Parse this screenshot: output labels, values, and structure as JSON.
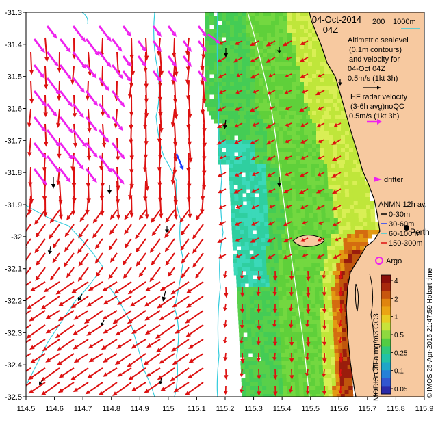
{
  "map": {
    "date_label": "04-Oct-2014",
    "time_label": "04Z",
    "x_ticks": [
      "114.5",
      "114.6",
      "114.7",
      "114.8",
      "114.9",
      "115",
      "115.1",
      "115.2",
      "115.3",
      "115.4",
      "115.5",
      "115.6",
      "115.7",
      "115.8",
      "115.9"
    ],
    "y_ticks": [
      "-31.3",
      "-31.4",
      "-31.5",
      "-31.6",
      "-31.7",
      "-31.8",
      "-31.9",
      "-32",
      "-32.1",
      "-32.2",
      "-32.3",
      "-32.4",
      "-32.5"
    ],
    "lon_range": [
      114.5,
      115.9
    ],
    "lat_range": [
      -32.5,
      -31.3
    ],
    "place_label": "Perth"
  },
  "legend": {
    "bathymetry": [
      "200",
      "1000m"
    ],
    "altimetric_lines": [
      "Altimetric sealevel",
      "(0.1m contours)",
      "and velocity for",
      "04-Oct 04Z",
      "0.5m/s (1kt 3h)"
    ],
    "hf_radar_lines": [
      "HF radar velocity",
      "(3-6h avg)noQC",
      "0.5m/s (1kt 3h)"
    ],
    "drifter_label": "drifter",
    "anmn_title": "ANMN 12h av.",
    "anmn_items": [
      "0-30m",
      "30-60m",
      "60-100m",
      "150-300m"
    ],
    "argo_label": "Argo"
  },
  "colorbar": {
    "title": "MODIS Chl-a mg/m3 OC3",
    "ticks": [
      "4",
      "2",
      "1",
      "0.5",
      "0.25",
      "0.1",
      "0.05"
    ]
  },
  "credit": "© IMOS 25-Apr-2015 21:47:59 Hobart time",
  "colors": {
    "land": "#f7c9a0",
    "hf_arrow": "#dd1010",
    "altimetry_arrow": "#ee22ee",
    "mooring_arrow": "#000000",
    "bathy_contour": "#33ccdd",
    "bathy_200": "#ffffff"
  }
}
